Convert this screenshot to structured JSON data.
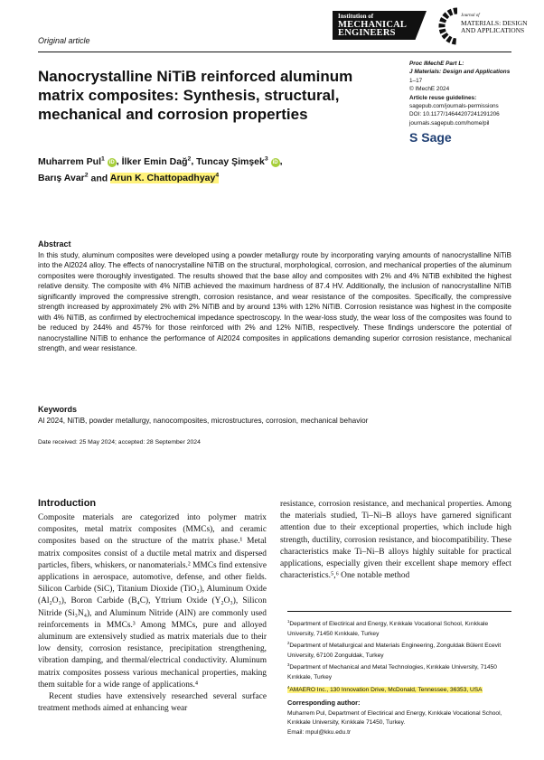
{
  "header": {
    "publisher_logo": [
      "Institution of",
      "MECHANICAL",
      "ENGINEERS"
    ],
    "journal_logo": {
      "prefix": "Journal of",
      "name_line1": "MATERIALS: DESIGN",
      "name_line2": "AND APPLICATIONS"
    },
    "article_type": "Original article"
  },
  "title": "Nanocrystalline NiTiB reinforced aluminum matrix composites: Synthesis, structural, mechanical and corrosion properties",
  "meta": {
    "journal1": "Proc IMechE Part L:",
    "journal2": "J Materials: Design and Applications",
    "pages": "1–17",
    "copyright": "© IMechE 2024",
    "reuse": "Article reuse guidelines:",
    "reuse_url": "sagepub.com/journals-permissions",
    "doi": "DOI: 10.1177/14644207241291206",
    "journal_url": "journals.sagepub.com/home/pil",
    "sage": "Sage"
  },
  "authors": [
    {
      "name": "Muharrem Pul",
      "sup": "1",
      "orcid": true
    },
    {
      "name": "İlker Emin Dağ",
      "sup": "2"
    },
    {
      "name": "Tuncay Şimşek",
      "sup": "3",
      "orcid": true
    },
    {
      "name": "Barış Avar",
      "sup": "2"
    },
    {
      "name": "Arun K. Chattopadhyay",
      "sup": "4",
      "highlighted": true
    }
  ],
  "author_sep": {
    "comma": ", ",
    "and": " and "
  },
  "abstract": {
    "heading": "Abstract",
    "text": "In this study, aluminum composites were developed using a powder metallurgy route by incorporating varying amounts of nanocrystalline NiTiB into the Al2024 alloy. The effects of nanocrystalline NiTiB on the structural, morphological, corrosion, and mechanical properties of the aluminum composites were thoroughly investigated. The results showed that the base alloy and composites with 2% and 4% NiTiB exhibited the highest relative density. The composite with 4% NiTiB achieved the maximum hardness of 87.4 HV. Additionally, the inclusion of nanocrystalline NiTiB significantly improved the compressive strength, corrosion resistance, and wear resistance of the composites. Specifically, the compressive strength increased by approximately 2% with 2% NiTiB and by around 13% with 12% NiTiB. Corrosion resistance was highest in the composite with 4% NiTiB, as confirmed by electrochemical impedance spectroscopy. In the wear-loss study, the wear loss of the composites was found to be reduced by 244% and 457% for those reinforced with 2% and 12% NiTiB, respectively. These findings underscore the potential of nanocrystalline NiTiB to enhance the performance of Al2024 composites in applications demanding superior corrosion resistance, mechanical strength, and wear resistance."
  },
  "keywords": {
    "heading": "Keywords",
    "text": "Al 2024, NiTiB, powder metallurgy, nanocomposites, microstructures, corrosion, mechanical behavior"
  },
  "dates": "Date received: 25 May 2024; accepted: 28 September 2024",
  "intro": {
    "heading": "Introduction",
    "p1": "Composite materials are categorized into polymer matrix composites, metal matrix composites (MMCs), and ceramic composites based on the structure of the matrix phase.¹ Metal matrix composites consist of a ductile metal matrix and dispersed particles, fibers, whiskers, or nanomaterials.² MMCs find extensive applications in aerospace, automotive, defense, and other fields. Silicon Carbide (SiC), Titanium Dioxide (TiO₂), Aluminum Oxide (Al₂O₃), Boron Carbide (B₄C), Yttrium Oxide (Y₂O₃), Silicon Nitride (Si₃N₄), and Aluminum Nitride (AlN) are commonly used reinforcements in MMCs.³ Among MMCs, pure and alloyed aluminum are extensively studied as matrix materials due to their low density, corrosion resistance, precipitation strengthening, vibration damping, and thermal/electrical conductivity. Aluminum matrix composites possess various mechanical properties, making them suitable for a wide range of applications.⁴",
    "p2": "Recent studies have extensively researched several surface treatment methods aimed at enhancing wear",
    "p3": "resistance, corrosion resistance, and mechanical properties. Among the materials studied, Ti–Ni–B alloys have garnered significant attention due to their exceptional properties, which include high strength, ductility, corrosion resistance, and biocompatibility. These characteristics make Ti–Ni–B alloys highly suitable for practical applications, especially given their excellent shape memory effect characteristics.⁵,⁶ One notable method"
  },
  "affiliations": [
    {
      "sup": "1",
      "text": "Department of Electirical and Energy, Kırıkkale Vocational School, Kırıkkale University, 71450 Kırıkkale, Turkey"
    },
    {
      "sup": "2",
      "text": "Department of Metallurgical and Materials Engineering, Zonguldak Bülent Ecevit University, 67100 Zonguldak, Turkey"
    },
    {
      "sup": "3",
      "text": "Department of Mechanical and Metal Technologies, Kırıkkale University, 71450 Kırıkkale, Turkey"
    },
    {
      "sup": "4",
      "text": "AMAERO Inc., 130 Innovation Drive, McDonald, Tennessee, 36353, USA"
    }
  ],
  "corresponding": {
    "heading": "Corresponding author:",
    "text": "Muharrem Pul, Department of Electirical and Energy, Kırıkkale Vocational School, Kırıkkale University, Kırıkkale 71450, Turkey.",
    "email": "Email: mpul@kku.edu.tr"
  },
  "colors": {
    "highlight": "#fff27a",
    "orcid": "#a6ce39",
    "sage": "#1f3f73"
  }
}
